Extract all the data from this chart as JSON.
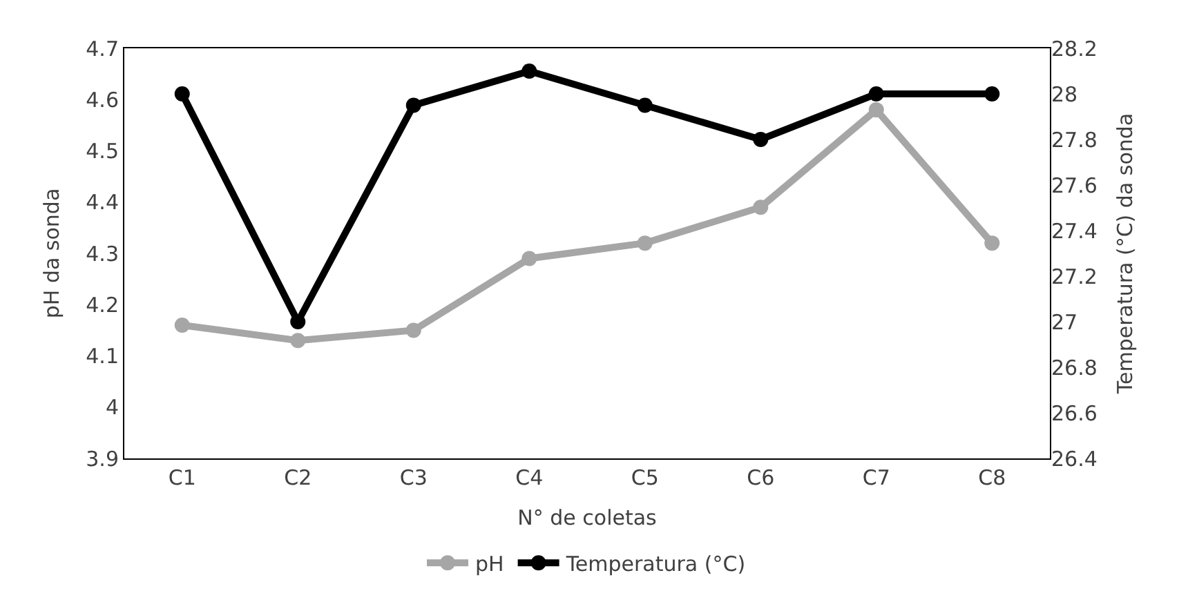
{
  "chart_data": {
    "type": "line",
    "xlabel": "N° de coletas",
    "ylabel": "pH da sonda",
    "y2label": "Temperatura (°C) da sonda",
    "categories": [
      "C1",
      "C2",
      "C3",
      "C4",
      "C5",
      "C6",
      "C7",
      "C8"
    ],
    "series": [
      {
        "name": "pH",
        "color": "#a6a6a6",
        "values": [
          4.16,
          4.13,
          4.15,
          4.29,
          4.32,
          4.39,
          4.58,
          4.32
        ]
      },
      {
        "name": "Temperatura (°C)",
        "color": "#000000",
        "axis": "y2",
        "values": [
          28.0,
          27.0,
          27.95,
          28.1,
          27.95,
          27.8,
          28.0,
          28.0
        ]
      }
    ],
    "ylim": [
      3.9,
      4.7
    ],
    "yticks": [
      3.9,
      4,
      4.1,
      4.2,
      4.3,
      4.4,
      4.5,
      4.6,
      4.7
    ],
    "y2lim": [
      26.4,
      28.2
    ],
    "y2ticks": [
      26.4,
      26.6,
      26.8,
      27,
      27.2,
      27.4,
      27.6,
      27.8,
      28,
      28.2
    ],
    "marker": "circle",
    "line_style": "solid",
    "legend": "bottom"
  }
}
